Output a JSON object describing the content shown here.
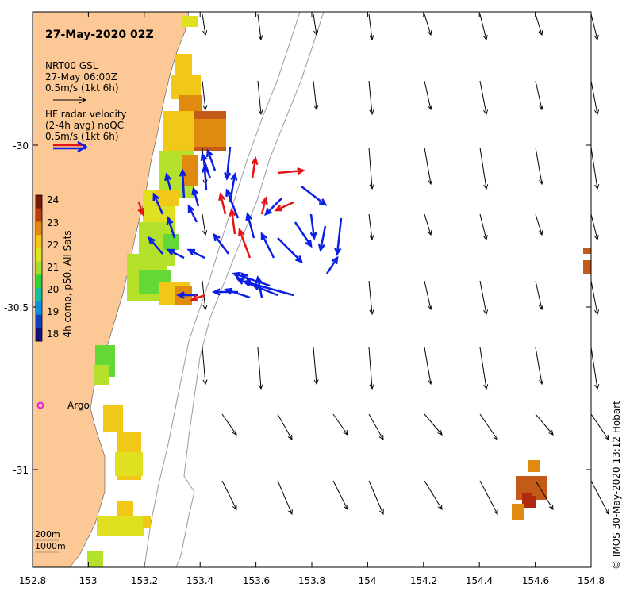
{
  "title": "27-May-2020 02Z",
  "legend_gsl": {
    "line1": "NRT00 GSL",
    "line2": "27-May 06:00Z",
    "line3": "0.5m/s (1kt 6h)"
  },
  "legend_radar": {
    "line1": "HF radar velocity",
    "line2": "(2-4h avg) noQC",
    "line3": "0.5m/s (1kt 6h)"
  },
  "colorbar": {
    "label": "4h comp, p50, All Sats",
    "ticks": [
      "24",
      "23",
      "22",
      "21",
      "20",
      "19",
      "18"
    ],
    "colors": [
      "#7a1a0a",
      "#b8400e",
      "#e08a10",
      "#f2c818",
      "#d8e820",
      "#9ee02a",
      "#2ed43a",
      "#10c0a0",
      "#1090e0",
      "#1040c0",
      "#101080"
    ]
  },
  "axes": {
    "x_ticks": [
      "152.8",
      "153",
      "153.2",
      "153.4",
      "153.6",
      "153.8",
      "154",
      "154.2",
      "154.4",
      "154.6",
      "154.8"
    ],
    "y_ticks": [
      "-30",
      "-30.5",
      "-31"
    ]
  },
  "argo_label": "Argo",
  "isobaths": [
    "200m",
    "1000m"
  ],
  "credit": "©  IMOS 30-May-2020 13:12 Hobart",
  "colors": {
    "land": "#fbc896",
    "radar_blue": "#0a1ee6",
    "radar_red": "#e61414",
    "argo": "#e020e0"
  }
}
